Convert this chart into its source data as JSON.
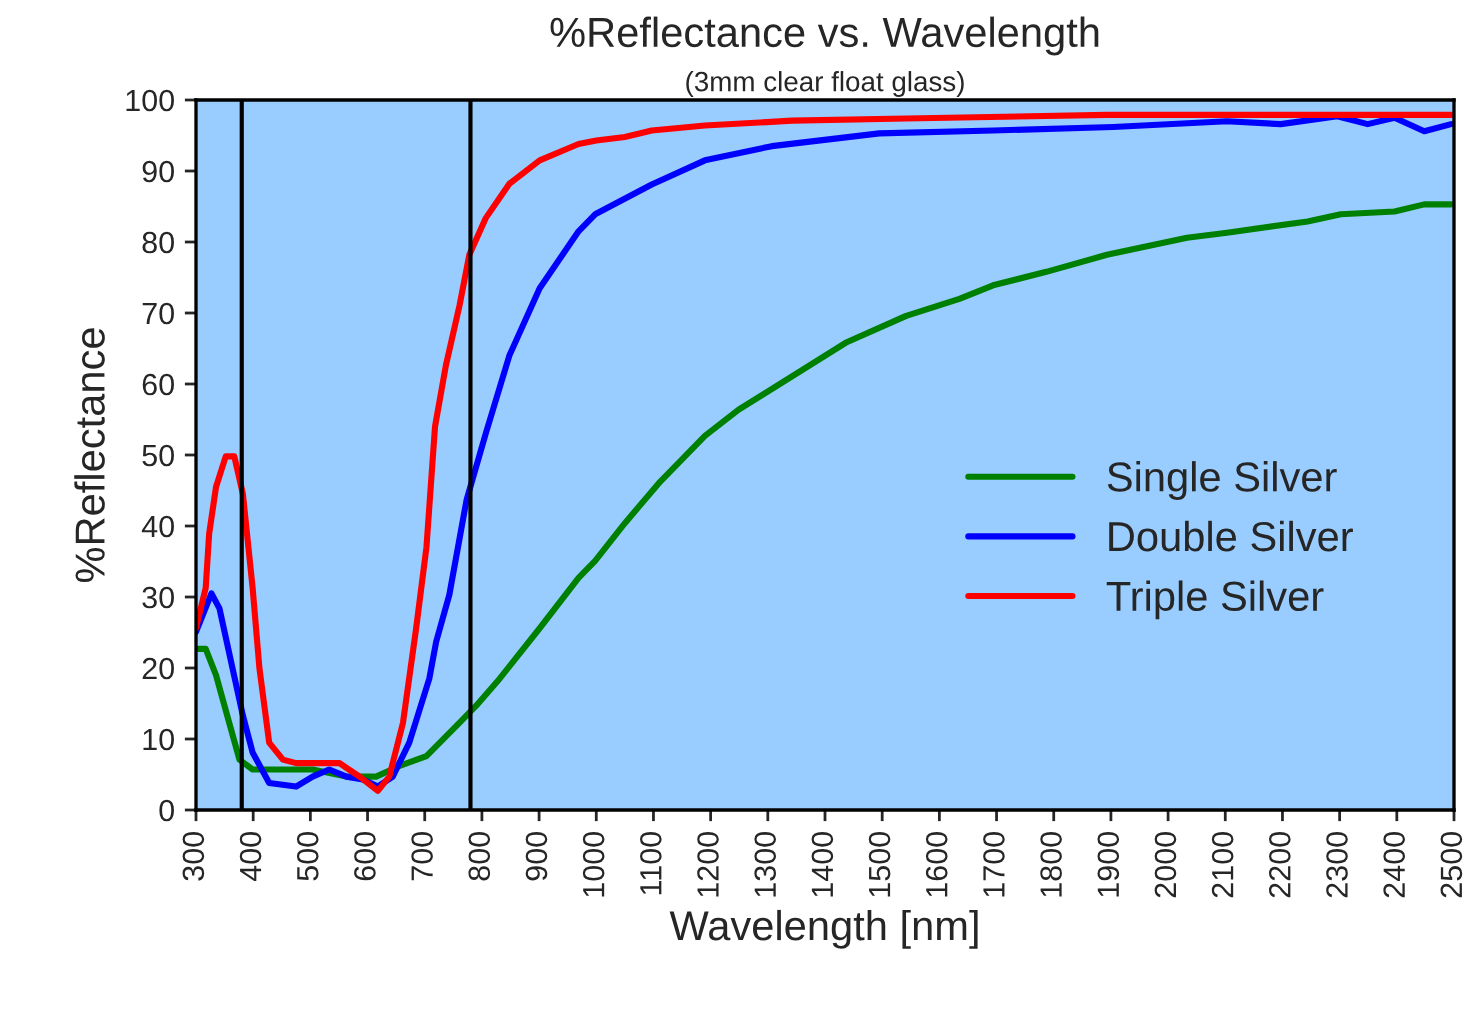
{
  "chart_data": {
    "type": "line",
    "title": "%Reflectance vs. Wavelength",
    "subtitle": "(3mm clear float glass)",
    "xlabel": "Wavelength [nm]",
    "ylabel": "%Reflectance",
    "xlim": [
      300,
      2500
    ],
    "xticks": [
      300,
      400,
      500,
      600,
      700,
      800,
      900,
      1000,
      1100,
      1200,
      1300,
      1400,
      1500,
      1600,
      1700,
      1800,
      1900,
      2000,
      2100,
      2200,
      2300,
      2400,
      2500
    ],
    "ylim": [
      0,
      100
    ],
    "yticks": [
      0,
      10,
      20,
      30,
      40,
      50,
      60,
      70,
      80,
      90,
      100
    ],
    "grid": false,
    "legend": "right",
    "marker": "none",
    "line_style": "solid",
    "ref_lines": [
      {
        "axis": "x",
        "value": 380,
        "color": "#000000"
      },
      {
        "axis": "x",
        "value": 780,
        "color": "#000000"
      }
    ],
    "series": [
      {
        "name": "Single Silver",
        "color": "#008000",
        "x": [
          300,
          317,
          335,
          358,
          376,
          399,
          504,
          563,
          615,
          656,
          703,
          761,
          790,
          831,
          901,
          969,
          998,
          1050,
          1109,
          1190,
          1249,
          1343,
          1436,
          1542,
          1635,
          1694,
          1787,
          1893,
          2033,
          2103,
          2244,
          2302,
          2396,
          2448,
          2495
        ],
        "values": [
          22.7,
          22.7,
          19.0,
          12.3,
          7.1,
          5.7,
          5.7,
          4.7,
          4.7,
          6.2,
          7.6,
          12.3,
          14.7,
          18.5,
          25.6,
          32.7,
          35.1,
          40.4,
          46.0,
          52.7,
          56.4,
          61.1,
          65.8,
          69.6,
          72.0,
          73.9,
          75.8,
          78.2,
          80.6,
          81.3,
          82.9,
          83.9,
          84.3,
          85.3,
          85.3
        ]
      },
      {
        "name": "Double Silver",
        "color": "#0000ff",
        "x": [
          300,
          327,
          341,
          364,
          382,
          399,
          428,
          475,
          504,
          533,
          563,
          592,
          618,
          644,
          673,
          708,
          720,
          743,
          773,
          807,
          848,
          901,
          969,
          998,
          1097,
          1190,
          1307,
          1495,
          1694,
          1904,
          2103,
          2197,
          2296,
          2349,
          2396,
          2448,
          2495
        ],
        "values": [
          25.1,
          30.5,
          28.4,
          19.9,
          13.3,
          8.1,
          3.8,
          3.3,
          4.7,
          5.7,
          4.7,
          4.3,
          3.3,
          4.7,
          9.5,
          18.5,
          23.7,
          30.3,
          43.6,
          53.1,
          64.0,
          73.5,
          81.5,
          83.9,
          88.1,
          91.5,
          93.5,
          95.3,
          95.7,
          96.2,
          97.0,
          96.6,
          97.7,
          96.6,
          97.5,
          95.6,
          96.6
        ]
      },
      {
        "name": "Triple Silver",
        "color": "#ff0000",
        "x": [
          300,
          317,
          323,
          335,
          352,
          367,
          382,
          399,
          411,
          428,
          452,
          475,
          551,
          586,
          618,
          638,
          662,
          685,
          703,
          718,
          737,
          761,
          778,
          807,
          848,
          901,
          969,
          1000,
          1050,
          1097,
          1190,
          1343,
          1542,
          1893,
          2495
        ],
        "values": [
          25.6,
          31.3,
          38.9,
          45.5,
          49.8,
          49.8,
          44.5,
          31.3,
          19.9,
          9.5,
          7.1,
          6.6,
          6.6,
          4.7,
          2.7,
          4.7,
          12.3,
          25.6,
          37.0,
          54.0,
          62.6,
          71.1,
          78.2,
          83.4,
          88.2,
          91.5,
          93.8,
          94.3,
          94.8,
          95.7,
          96.4,
          97.1,
          97.4,
          97.9,
          97.9
        ]
      }
    ]
  }
}
